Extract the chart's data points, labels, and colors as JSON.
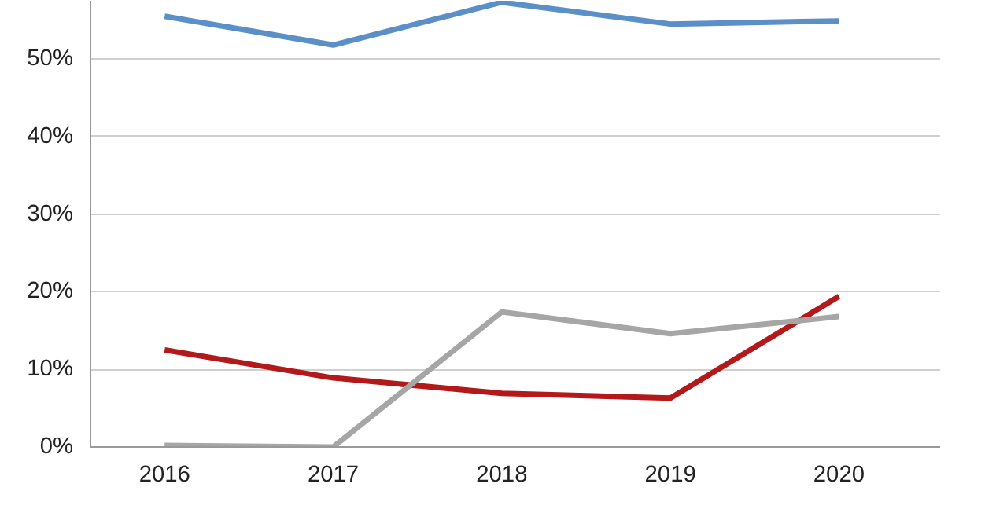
{
  "chart_data": {
    "type": "line",
    "categories": [
      "2016",
      "2017",
      "2018",
      "2019",
      "2020"
    ],
    "series": [
      {
        "color": "#5b8fc7",
        "values": [
          55.5,
          51.8,
          57.3,
          54.5,
          54.9
        ]
      },
      {
        "color": "#b3191b",
        "values": [
          12.5,
          8.9,
          6.9,
          6.3,
          19.4
        ]
      },
      {
        "color": "#a6a6a6",
        "values": [
          0.2,
          0,
          17.4,
          14.6,
          16.8
        ]
      }
    ],
    "ylim": [
      0,
      57.5
    ],
    "yticks": [
      {
        "value": 0,
        "label": "0%"
      },
      {
        "value": 10,
        "label": "10%"
      },
      {
        "value": 20,
        "label": "20%"
      },
      {
        "value": 30,
        "label": "30%"
      },
      {
        "value": 40,
        "label": "40%"
      },
      {
        "value": 50,
        "label": "50%"
      }
    ],
    "grid": "y",
    "marker": "none",
    "line_style": "solid"
  }
}
